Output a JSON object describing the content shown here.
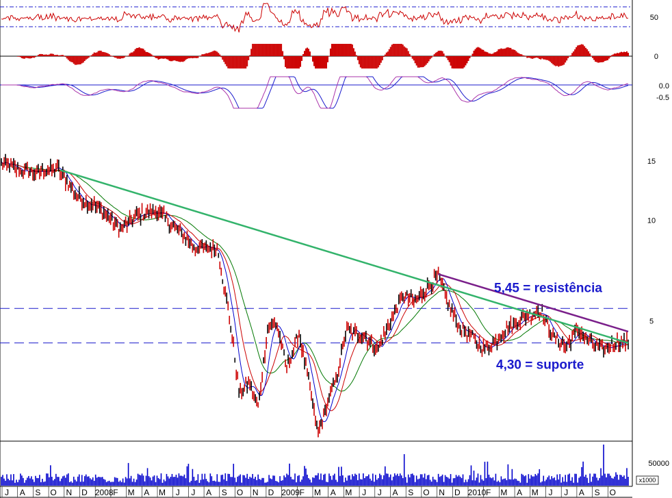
{
  "chart_data": {
    "type": "line",
    "panels": {
      "rsi": {
        "ticks": [
          50
        ],
        "ylim": [
          0,
          100
        ],
        "bands": [
          30,
          70
        ]
      },
      "macd_hist": {
        "ticks": [
          0
        ]
      },
      "macd": {
        "ticks": [
          "0.0",
          "-0.5"
        ]
      },
      "price": {
        "scale": "log",
        "ylim": [
          2.2,
          19
        ],
        "ticks": [
          15,
          10,
          5
        ],
        "trendline_long": {
          "color": "#33b36b",
          "from": {
            "t": 0.094,
            "y": 14.1
          },
          "to": {
            "t": 1.0,
            "y": 4.3
          }
        },
        "trendline_short": {
          "color": "#7a1f8a",
          "from": {
            "t": 0.697,
            "y": 6.9
          },
          "to": {
            "t": 1.0,
            "y": 4.65
          }
        },
        "levels": [
          {
            "value": 5.45,
            "label": "5,45 = resistência",
            "color": "#1a1acc"
          },
          {
            "value": 4.3,
            "label": "4,30 = suporte",
            "color": "#1a1acc"
          }
        ],
        "price_keypoints": [
          [
            0.0,
            14.8
          ],
          [
            0.03,
            14.0
          ],
          [
            0.06,
            13.9
          ],
          [
            0.09,
            14.3
          ],
          [
            0.12,
            11.8
          ],
          [
            0.16,
            10.7
          ],
          [
            0.19,
            9.4
          ],
          [
            0.22,
            10.4
          ],
          [
            0.25,
            10.6
          ],
          [
            0.28,
            9.4
          ],
          [
            0.31,
            8.3
          ],
          [
            0.345,
            8.2
          ],
          [
            0.365,
            5.0
          ],
          [
            0.38,
            3.0
          ],
          [
            0.395,
            3.3
          ],
          [
            0.41,
            2.75
          ],
          [
            0.425,
            4.8
          ],
          [
            0.44,
            4.9
          ],
          [
            0.455,
            3.6
          ],
          [
            0.475,
            4.6
          ],
          [
            0.49,
            3.3
          ],
          [
            0.505,
            2.3
          ],
          [
            0.52,
            2.85
          ],
          [
            0.535,
            3.4
          ],
          [
            0.55,
            4.7
          ],
          [
            0.58,
            4.5
          ],
          [
            0.6,
            4.1
          ],
          [
            0.625,
            5.2
          ],
          [
            0.64,
            6.0
          ],
          [
            0.66,
            5.7
          ],
          [
            0.68,
            6.3
          ],
          [
            0.697,
            6.8
          ],
          [
            0.71,
            5.8
          ],
          [
            0.73,
            4.8
          ],
          [
            0.75,
            4.5
          ],
          [
            0.77,
            4.1
          ],
          [
            0.79,
            4.4
          ],
          [
            0.81,
            4.8
          ],
          [
            0.84,
            5.2
          ],
          [
            0.86,
            5.4
          ],
          [
            0.88,
            4.5
          ],
          [
            0.9,
            4.2
          ],
          [
            0.92,
            4.7
          ],
          [
            0.94,
            4.3
          ],
          [
            0.96,
            4.1
          ],
          [
            0.98,
            4.3
          ],
          [
            1.0,
            4.3
          ]
        ]
      },
      "volume": {
        "ticks": [
          50000
        ],
        "unit": "x1000"
      }
    },
    "xaxis": {
      "months": [
        "J",
        "A",
        "S",
        "O",
        "N",
        "D",
        "2008",
        "F",
        "M",
        "A",
        "M",
        "J",
        "J",
        "A",
        "S",
        "O",
        "N",
        "D",
        "2009",
        "F",
        "M",
        "A",
        "M",
        "J",
        "J",
        "A",
        "S",
        "O",
        "N",
        "D",
        "2010",
        "F",
        "M",
        "A",
        "M",
        "J",
        "J",
        "A",
        "S",
        "O"
      ]
    },
    "colors": {
      "price": "#cc0000",
      "ma_fast": "#0000cc",
      "ma_mid": "#cc0000",
      "ma_slow": "#007700",
      "volume": "#0000cc",
      "indicator": "#cc0000",
      "macd_signal": "#1a1acc",
      "macd_line": "#aa33aa"
    }
  }
}
